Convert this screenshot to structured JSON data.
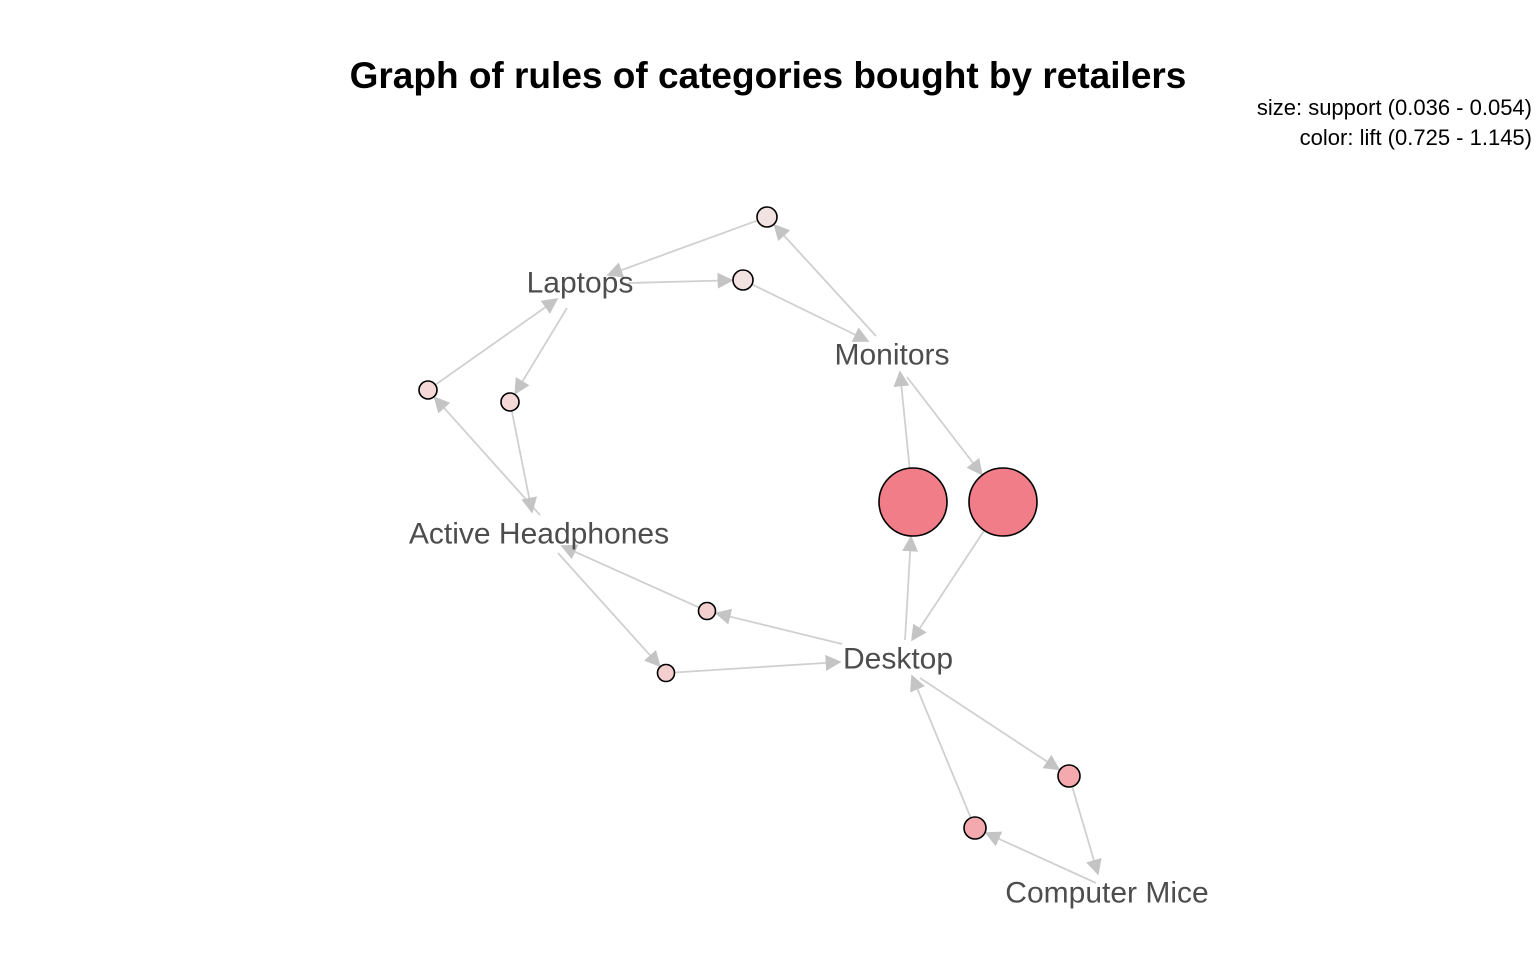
{
  "title": "Graph of rules of categories bought by retailers",
  "legend": {
    "size_line": "size: support (0.036 - 0.054)",
    "color_line": "color: lift (0.725 - 1.145)"
  },
  "graph": {
    "type": "association-rules-graph",
    "items": [
      {
        "id": "laptops",
        "label": "Laptops"
      },
      {
        "id": "monitors",
        "label": "Monitors"
      },
      {
        "id": "active_headphones",
        "label": "Active Headphones"
      },
      {
        "id": "desktop",
        "label": "Desktop"
      },
      {
        "id": "computer_mice",
        "label": "Computer Mice"
      }
    ],
    "rules": [
      {
        "id": "r1",
        "lhs": "monitors",
        "rhs": "laptops",
        "color": "#f2e2e2"
      },
      {
        "id": "r2",
        "lhs": "laptops",
        "rhs": "monitors",
        "color": "#f2e2e2"
      },
      {
        "id": "r3",
        "lhs": "active_headphones",
        "rhs": "laptops",
        "color": "#f5d8d8"
      },
      {
        "id": "r4",
        "lhs": "laptops",
        "rhs": "active_headphones",
        "color": "#f5d8d8"
      },
      {
        "id": "r5",
        "lhs": "desktop",
        "rhs": "monitors",
        "color": "#f07d88"
      },
      {
        "id": "r6",
        "lhs": "monitors",
        "rhs": "desktop",
        "color": "#f07d88"
      },
      {
        "id": "r7",
        "lhs": "desktop",
        "rhs": "active_headphones",
        "color": "#f4cfcf"
      },
      {
        "id": "r8",
        "lhs": "active_headphones",
        "rhs": "desktop",
        "color": "#f4cfcf"
      },
      {
        "id": "r9",
        "lhs": "desktop",
        "rhs": "computer_mice",
        "color": "#f3a9ad"
      },
      {
        "id": "r10",
        "lhs": "computer_mice",
        "rhs": "desktop",
        "color": "#f3a9ad"
      }
    ]
  }
}
